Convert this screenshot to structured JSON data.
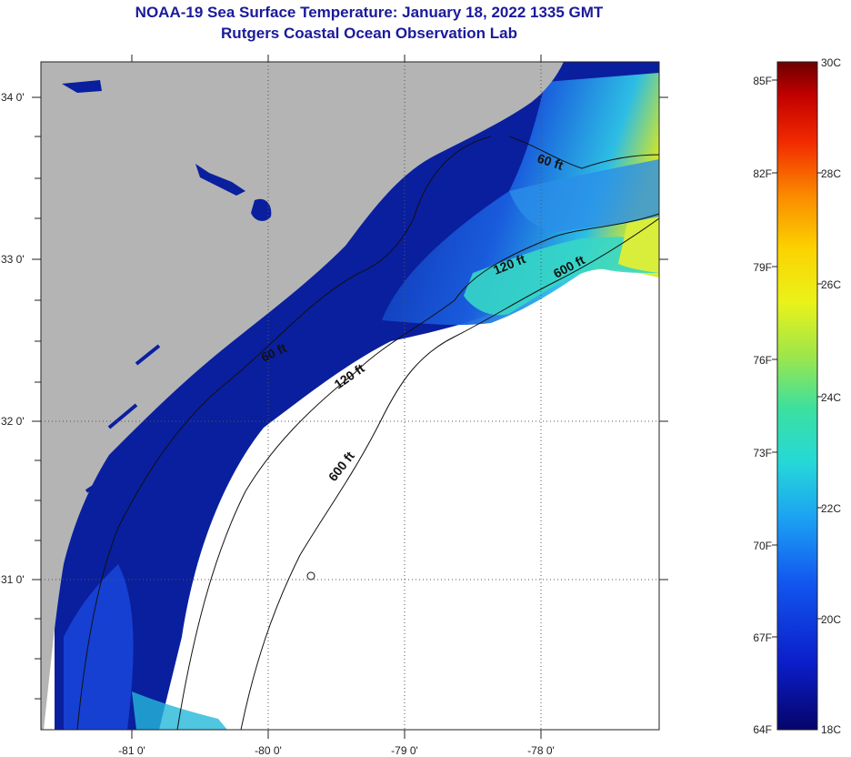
{
  "header": {
    "title": "NOAA-19 Sea Surface Temperature:  January 18, 2022 1335 GMT",
    "subtitle": "Rutgers Coastal Ocean Observation Lab"
  },
  "map": {
    "lat_labels": [
      "34 0'",
      "33 0'",
      "32 0'",
      "31 0'"
    ],
    "lon_labels": [
      "-81 0'",
      "-80 0'",
      "-79 0'",
      "-78 0'"
    ],
    "contours": {
      "c60_a": "60 ft",
      "c60_b": "60 ft",
      "c120_a": "120 ft",
      "c120_b": "120 ft",
      "c600_a": "600 ft",
      "c600_b": "600 ft"
    }
  },
  "colorbar": {
    "fahrenheit": [
      "85F",
      "82F",
      "79F",
      "76F",
      "73F",
      "70F",
      "67F",
      "64F"
    ],
    "celsius": [
      "30C",
      "28C",
      "26C",
      "24C",
      "22C",
      "20C",
      "18C"
    ]
  },
  "colors": {
    "land": "#b4b4b4",
    "cold": "#0a1f9e",
    "cloud": "#ffffff",
    "title": "#1a1a9c"
  }
}
